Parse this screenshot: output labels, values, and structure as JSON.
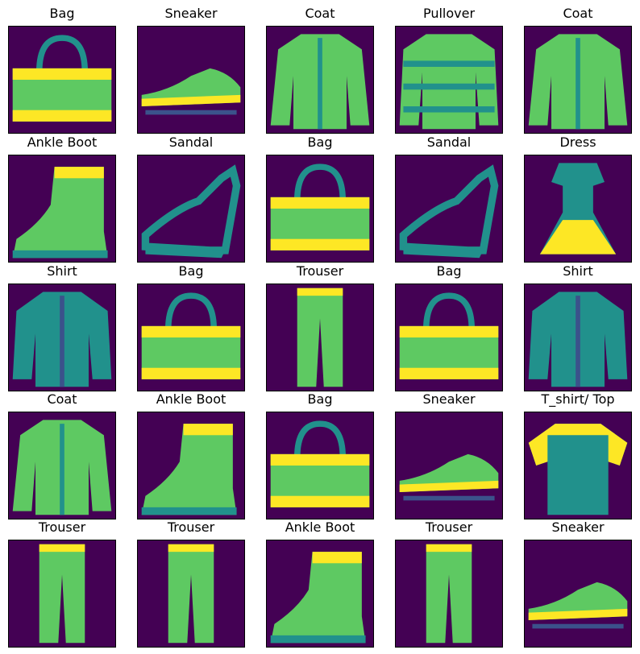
{
  "colormap": {
    "name": "viridis",
    "background": "#440154",
    "low": "#3b528b",
    "mid": "#21918c",
    "high": "#5ec962",
    "max": "#fde725"
  },
  "items": [
    {
      "label": "Bag",
      "icon": "bag-icon"
    },
    {
      "label": "Sneaker",
      "icon": "sneaker-icon"
    },
    {
      "label": "Coat",
      "icon": "coat-icon"
    },
    {
      "label": "Pullover",
      "icon": "pullover-icon"
    },
    {
      "label": "Coat",
      "icon": "coat-icon"
    },
    {
      "label": "Ankle Boot",
      "icon": "ankle-boot-icon"
    },
    {
      "label": "Sandal",
      "icon": "sandal-icon"
    },
    {
      "label": "Bag",
      "icon": "bag-icon"
    },
    {
      "label": "Sandal",
      "icon": "sandal-icon"
    },
    {
      "label": "Dress",
      "icon": "dress-icon"
    },
    {
      "label": "Shirt",
      "icon": "shirt-icon"
    },
    {
      "label": "Bag",
      "icon": "bag-icon"
    },
    {
      "label": "Trouser",
      "icon": "trouser-icon"
    },
    {
      "label": "Bag",
      "icon": "bag-icon"
    },
    {
      "label": "Shirt",
      "icon": "shirt-icon"
    },
    {
      "label": "Coat",
      "icon": "coat-icon"
    },
    {
      "label": "Ankle Boot",
      "icon": "ankle-boot-icon"
    },
    {
      "label": "Bag",
      "icon": "bag-icon"
    },
    {
      "label": "Sneaker",
      "icon": "sneaker-icon"
    },
    {
      "label": "T_shirt/ Top",
      "icon": "tshirt-icon"
    },
    {
      "label": "Trouser",
      "icon": "trouser-icon"
    },
    {
      "label": "Trouser",
      "icon": "trouser-icon"
    },
    {
      "label": "Ankle Boot",
      "icon": "ankle-boot-icon"
    },
    {
      "label": "Trouser",
      "icon": "trouser-icon"
    },
    {
      "label": "Sneaker",
      "icon": "sneaker-icon"
    }
  ]
}
